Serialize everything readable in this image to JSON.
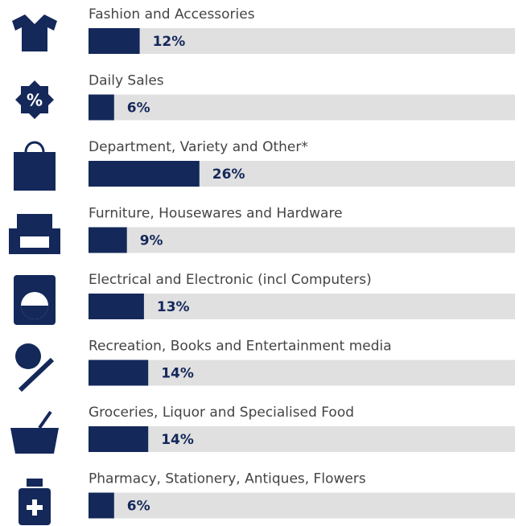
{
  "chart_data": {
    "type": "bar",
    "orientation": "horizontal",
    "categories": [
      "Fashion and Accessories",
      "Daily Sales",
      "Department, Variety and Other*",
      "Furniture, Housewares and Hardware",
      "Electrical and Electronic (incl Computers)",
      "Recreation, Books and Entertainment media",
      "Groceries, Liquor and Specialised Food",
      "Pharmacy, Stationery, Antiques, Flowers"
    ],
    "values": [
      12,
      6,
      26,
      9,
      13,
      14,
      14,
      6
    ],
    "value_labels": [
      "12%",
      "6%",
      "26%",
      "9%",
      "13%",
      "14%",
      "14%",
      "6%"
    ],
    "color": "#14285a",
    "track_color": "#e0e0e0",
    "xlim": [
      0,
      100
    ]
  }
}
